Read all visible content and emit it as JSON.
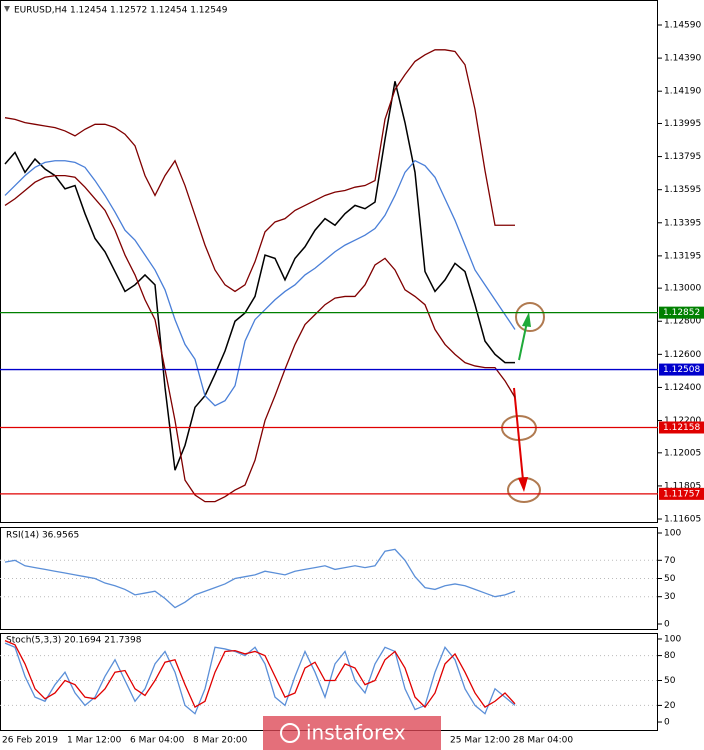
{
  "chart_data": [
    {
      "type": "line",
      "title": "EURUSD,H4  1.12454 1.12572 1.12454 1.12549",
      "ylim": [
        1.11587,
        1.14729
      ],
      "yticks": [
        {
          "value": 1.1459,
          "label": "1.14590"
        },
        {
          "value": 1.1439,
          "label": "1.14390"
        },
        {
          "value": 1.1419,
          "label": "1.14190"
        },
        1.13995,
        1.13795,
        1.13595,
        1.13395,
        1.13195,
        {
          "value": 1.13,
          "label": "1.13000"
        },
        {
          "value": 1.128,
          "label": "1.12800"
        },
        {
          "value": 1.126,
          "label": "1.12600"
        },
        {
          "value": 1.124,
          "label": "1.12400"
        },
        {
          "value": 1.122,
          "label": "1.12200"
        },
        1.12005,
        1.11805,
        1.11605
      ],
      "series": [
        {
          "name": "close",
          "color": "#000000",
          "values": [
            1.1375,
            1.1382,
            1.137,
            1.1378,
            1.1372,
            1.1368,
            1.136,
            1.1362,
            1.1345,
            1.133,
            1.1322,
            1.131,
            1.1298,
            1.1302,
            1.1308,
            1.1302,
            1.124,
            1.119,
            1.1205,
            1.1228,
            1.1235,
            1.1248,
            1.1262,
            1.128,
            1.1285,
            1.1295,
            1.132,
            1.1318,
            1.1305,
            1.1318,
            1.1325,
            1.1335,
            1.1342,
            1.1338,
            1.1345,
            1.135,
            1.1348,
            1.1352,
            1.139,
            1.1425,
            1.14,
            1.137,
            1.131,
            1.1298,
            1.1305,
            1.1315,
            1.131,
            1.129,
            1.1268,
            1.126,
            1.1255,
            1.1255
          ]
        },
        {
          "name": "upper",
          "color": "#800000",
          "values": [
            1.1403,
            1.1402,
            1.14,
            1.1399,
            1.1398,
            1.1397,
            1.1395,
            1.1392,
            1.1396,
            1.1399,
            1.1399,
            1.1397,
            1.1393,
            1.1386,
            1.1368,
            1.1356,
            1.1368,
            1.1377,
            1.1362,
            1.1344,
            1.1326,
            1.1311,
            1.1302,
            1.1298,
            1.1302,
            1.1316,
            1.1334,
            1.134,
            1.1342,
            1.1347,
            1.135,
            1.1353,
            1.1356,
            1.1358,
            1.1359,
            1.1361,
            1.1362,
            1.1365,
            1.1402,
            1.142,
            1.1429,
            1.1437,
            1.1441,
            1.1444,
            1.1444,
            1.1443,
            1.1435,
            1.1408,
            1.1371,
            1.1338,
            1.1338,
            1.1338
          ]
        },
        {
          "name": "middle",
          "color": "#4a7fd8",
          "values": [
            1.1356,
            1.1362,
            1.1368,
            1.1373,
            1.1376,
            1.1377,
            1.1377,
            1.1376,
            1.1373,
            1.1365,
            1.1356,
            1.1346,
            1.1335,
            1.1329,
            1.132,
            1.1311,
            1.1299,
            1.1281,
            1.1266,
            1.1257,
            1.1235,
            1.1229,
            1.1232,
            1.1241,
            1.1268,
            1.1281,
            1.1287,
            1.1293,
            1.1298,
            1.1302,
            1.1308,
            1.1312,
            1.1317,
            1.1322,
            1.1326,
            1.1329,
            1.1332,
            1.1336,
            1.1344,
            1.1356,
            1.137,
            1.1377,
            1.1374,
            1.1367,
            1.1354,
            1.1341,
            1.1326,
            1.1311,
            1.1302,
            1.1293,
            1.1284,
            1.1275
          ]
        },
        {
          "name": "lower",
          "color": "#800000",
          "values": [
            1.135,
            1.1354,
            1.1359,
            1.1364,
            1.1367,
            1.1368,
            1.1368,
            1.1367,
            1.1361,
            1.1354,
            1.1347,
            1.1335,
            1.132,
            1.1308,
            1.1293,
            1.1281,
            1.1251,
            1.122,
            1.1184,
            1.1175,
            1.1171,
            1.1171,
            1.1174,
            1.1178,
            1.1181,
            1.1196,
            1.122,
            1.1235,
            1.1251,
            1.1266,
            1.1278,
            1.1284,
            1.129,
            1.1294,
            1.1295,
            1.1295,
            1.1302,
            1.1314,
            1.1318,
            1.1311,
            1.1299,
            1.1295,
            1.129,
            1.1275,
            1.1266,
            1.126,
            1.1255,
            1.1253,
            1.1252,
            1.1252,
            1.1244,
            1.1234
          ]
        }
      ],
      "levels": [
        {
          "value": 1.12852,
          "color": "#008000"
        },
        {
          "value": 1.12508,
          "color": "#0000cc"
        },
        {
          "value": 1.12158,
          "color": "#e00000"
        },
        {
          "value": 1.11757,
          "color": "#e00000"
        }
      ],
      "time_labels": [
        "26 Feb 2019",
        "1 Mar 12:00",
        "6 Mar 04:00",
        "8 Mar 20:00",
        "25 Mar 12:00",
        "28 Mar 04:00"
      ],
      "watermark": "instaforex"
    },
    {
      "type": "line",
      "title": "RSI(14) 36.9565",
      "ylim": [
        -6.6,
        106.6
      ],
      "yticks": [
        100,
        70,
        50,
        30,
        0
      ],
      "series": [
        {
          "name": "RSI",
          "color": "#5b8fd8",
          "values": [
            68,
            70,
            64,
            62,
            60,
            58,
            56,
            54,
            52,
            50,
            45,
            42,
            38,
            32,
            34,
            36,
            28,
            18,
            24,
            32,
            36,
            40,
            44,
            50,
            52,
            54,
            58,
            56,
            54,
            58,
            60,
            62,
            64,
            60,
            62,
            64,
            62,
            64,
            80,
            82,
            70,
            52,
            40,
            38,
            42,
            44,
            42,
            38,
            34,
            30,
            32,
            36
          ]
        }
      ]
    },
    {
      "type": "line",
      "title": "Stoch(5,3,3) 20.1694 21.7398",
      "ylim": [
        -9.6,
        107.2
      ],
      "yticks": [
        100,
        80,
        50,
        20,
        0
      ],
      "series": [
        {
          "name": "K",
          "color": "#5b8fd8",
          "values": [
            95,
            90,
            55,
            30,
            25,
            45,
            60,
            35,
            20,
            30,
            55,
            75,
            50,
            25,
            40,
            70,
            85,
            60,
            20,
            10,
            40,
            90,
            88,
            85,
            80,
            90,
            70,
            30,
            20,
            55,
            85,
            60,
            30,
            70,
            85,
            50,
            35,
            70,
            90,
            85,
            40,
            15,
            20,
            60,
            90,
            75,
            40,
            20,
            10,
            40,
            30,
            20
          ]
        },
        {
          "name": "D",
          "color": "#e00000",
          "values": [
            98,
            93,
            70,
            40,
            28,
            35,
            50,
            45,
            30,
            28,
            40,
            60,
            62,
            40,
            32,
            50,
            72,
            75,
            45,
            18,
            25,
            60,
            85,
            86,
            82,
            85,
            80,
            55,
            30,
            35,
            65,
            72,
            50,
            50,
            70,
            65,
            45,
            50,
            75,
            85,
            65,
            30,
            18,
            35,
            70,
            82,
            60,
            35,
            18,
            25,
            35,
            22
          ]
        }
      ]
    }
  ]
}
